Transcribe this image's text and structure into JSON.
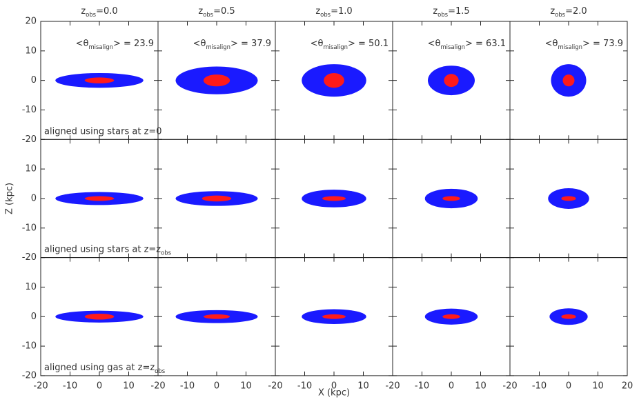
{
  "chart_data": {
    "type": "ellipse",
    "columns": [
      {
        "base": "z",
        "sub": "obs",
        "rest": "=0.0"
      },
      {
        "base": "z",
        "sub": "obs",
        "rest": "=0.5"
      },
      {
        "base": "z",
        "sub": "obs",
        "rest": "=1.0"
      },
      {
        "base": "z",
        "sub": "obs",
        "rest": "=1.5"
      },
      {
        "base": "z",
        "sub": "obs",
        "rest": "=2.0"
      }
    ],
    "annotation": {
      "prefix": "<θ",
      "sub": "misalign",
      "suffix": "> = "
    },
    "misalign": [
      23.9,
      37.9,
      50.1,
      63.1,
      73.9
    ],
    "rows": [
      {
        "text": "aligned using stars at z=0"
      },
      {
        "text": "aligned using stars at z=z",
        "sub": "obs"
      },
      {
        "text": "aligned using gas at z=z",
        "sub": "obs"
      }
    ],
    "x_label": "X (kpc)",
    "y_label": "Z (kpc)",
    "xlim": [
      -20,
      20
    ],
    "ylim": [
      -20,
      20
    ],
    "xticks": [
      -20,
      -10,
      0,
      10,
      20
    ],
    "yticks": [
      -20,
      -10,
      0,
      10,
      20
    ],
    "colors": {
      "outer": "#1a1aff",
      "inner": "#ff1a1a"
    },
    "panels": [
      [
        {
          "outer": [
            15,
            2.5
          ],
          "inner": [
            5,
            1
          ]
        },
        {
          "outer": [
            14,
            4.7
          ],
          "inner": [
            4.5,
            2
          ]
        },
        {
          "outer": [
            11,
            5.5
          ],
          "inner": [
            3.5,
            2.5
          ]
        },
        {
          "outer": [
            8,
            5
          ],
          "inner": [
            2.5,
            2.2
          ]
        },
        {
          "outer": [
            6,
            5.5
          ],
          "inner": [
            2,
            2
          ]
        }
      ],
      [
        {
          "outer": [
            15,
            2.2
          ],
          "inner": [
            5,
            0.8
          ]
        },
        {
          "outer": [
            14,
            2.5
          ],
          "inner": [
            5,
            1
          ]
        },
        {
          "outer": [
            11,
            3
          ],
          "inner": [
            4,
            0.8
          ]
        },
        {
          "outer": [
            9,
            3.3
          ],
          "inner": [
            3,
            0.8
          ]
        },
        {
          "outer": [
            7,
            3.5
          ],
          "inner": [
            2.5,
            0.8
          ]
        }
      ],
      [
        {
          "outer": [
            15,
            2
          ],
          "inner": [
            5,
            1
          ]
        },
        {
          "outer": [
            14,
            2.2
          ],
          "inner": [
            4.5,
            0.8
          ]
        },
        {
          "outer": [
            11,
            2.5
          ],
          "inner": [
            4,
            0.8
          ]
        },
        {
          "outer": [
            9,
            2.7
          ],
          "inner": [
            3,
            0.8
          ]
        },
        {
          "outer": [
            6.5,
            2.8
          ],
          "inner": [
            2.5,
            0.8
          ]
        }
      ]
    ]
  }
}
